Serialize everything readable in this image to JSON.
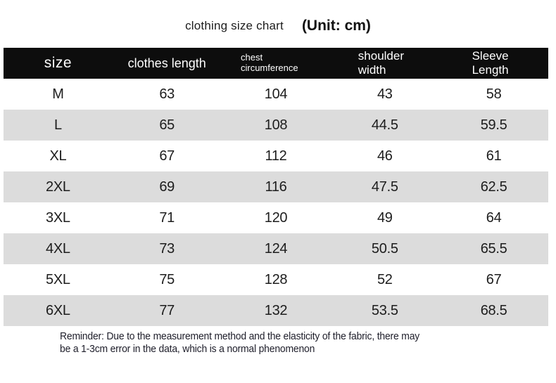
{
  "title": {
    "main": "clothing size chart",
    "unit_label": "(Unit: cm)"
  },
  "chart_data": {
    "type": "table",
    "title": "clothing size chart",
    "unit": "cm",
    "columns": [
      "size",
      "clothes length",
      "chest circumference",
      "shoulder width",
      "Sleeve Length"
    ],
    "rows": [
      [
        "M",
        "63",
        "104",
        "43",
        "58"
      ],
      [
        "L",
        "65",
        "108",
        "44.5",
        "59.5"
      ],
      [
        "XL",
        "67",
        "112",
        "46",
        "61"
      ],
      [
        "2XL",
        "69",
        "116",
        "47.5",
        "62.5"
      ],
      [
        "3XL",
        "71",
        "120",
        "49",
        "64"
      ],
      [
        "4XL",
        "73",
        "124",
        "50.5",
        "65.5"
      ],
      [
        "5XL",
        "75",
        "128",
        "52",
        "67"
      ],
      [
        "6XL",
        "77",
        "132",
        "53.5",
        "68.5"
      ]
    ],
    "note_lines": [
      "Reminder: Due to the measurement method and the elasticity of the fabric, there may",
      "be a 1-3cm error in the data, which is a normal phenomenon"
    ]
  },
  "colors": {
    "header_bg": "#0d0d0d",
    "header_text": "#ffffff",
    "row_stripe": "#dcdcdc",
    "row_plain": "#ffffff",
    "text": "#1d1d1d"
  }
}
